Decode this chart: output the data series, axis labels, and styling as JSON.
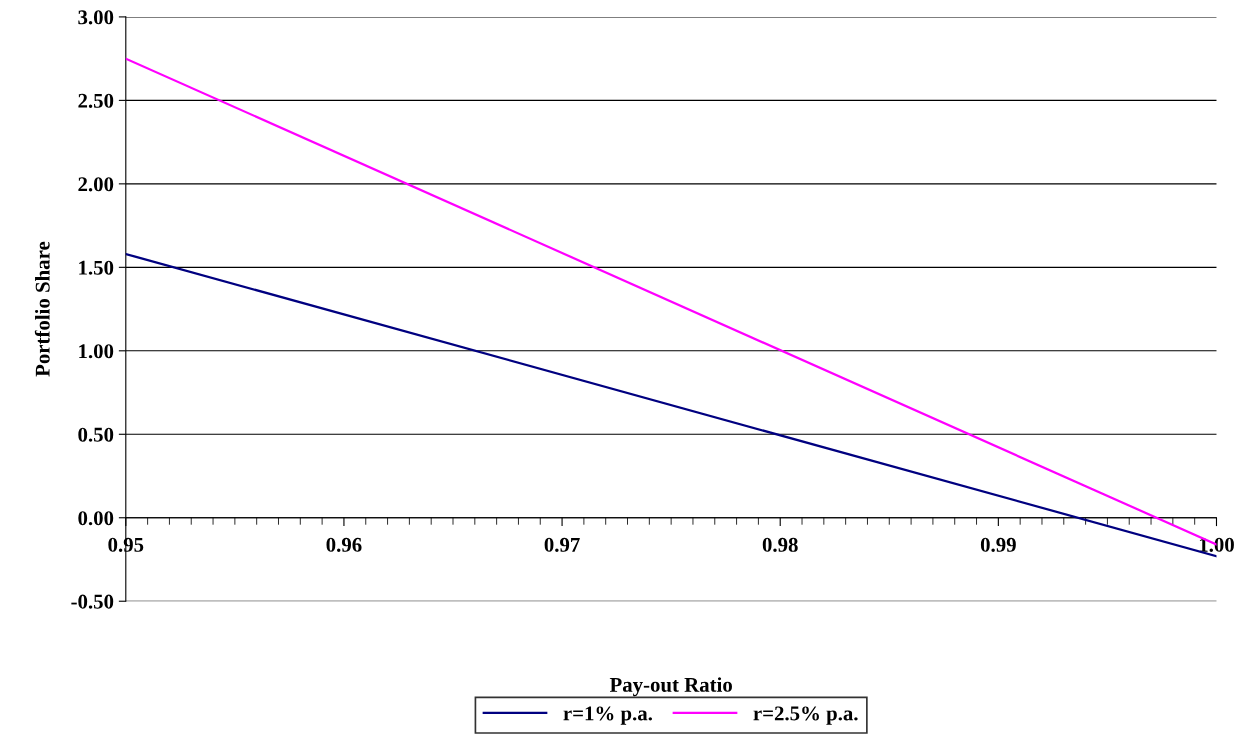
{
  "chart_data": {
    "type": "line",
    "xlabel": "Pay-out Ratio",
    "ylabel": "Portfolio Share",
    "x": [
      0.95,
      1.0
    ],
    "series": [
      {
        "name": "r=1% p.a.",
        "color": "#000080",
        "values": [
          1.58,
          -0.23
        ]
      },
      {
        "name": "r=2.5% p.a.",
        "color": "#ff00ff",
        "values": [
          2.75,
          -0.16
        ]
      }
    ],
    "xlim": [
      0.95,
      1.0
    ],
    "xticks": [
      0.95,
      0.96,
      0.97,
      0.98,
      0.99,
      {
        "value": 1.0,
        "label": "1.00"
      }
    ],
    "ylim": [
      -0.5,
      3.0
    ],
    "yticks": [
      {
        "value": -0.5,
        "label": "-0.50"
      },
      {
        "value": 0,
        "label": "0.00"
      },
      {
        "value": 0.5,
        "label": "0.50"
      },
      {
        "value": 1.0,
        "label": "1.00"
      },
      {
        "value": 1.5,
        "label": "1.50"
      },
      {
        "value": 2.0,
        "label": "2.00"
      },
      {
        "value": 2.5,
        "label": "2.50"
      },
      {
        "value": 3.0,
        "label": "3.00"
      }
    ],
    "grid": "y",
    "legend": "bottom",
    "marker": "none",
    "line_style": "solid"
  }
}
